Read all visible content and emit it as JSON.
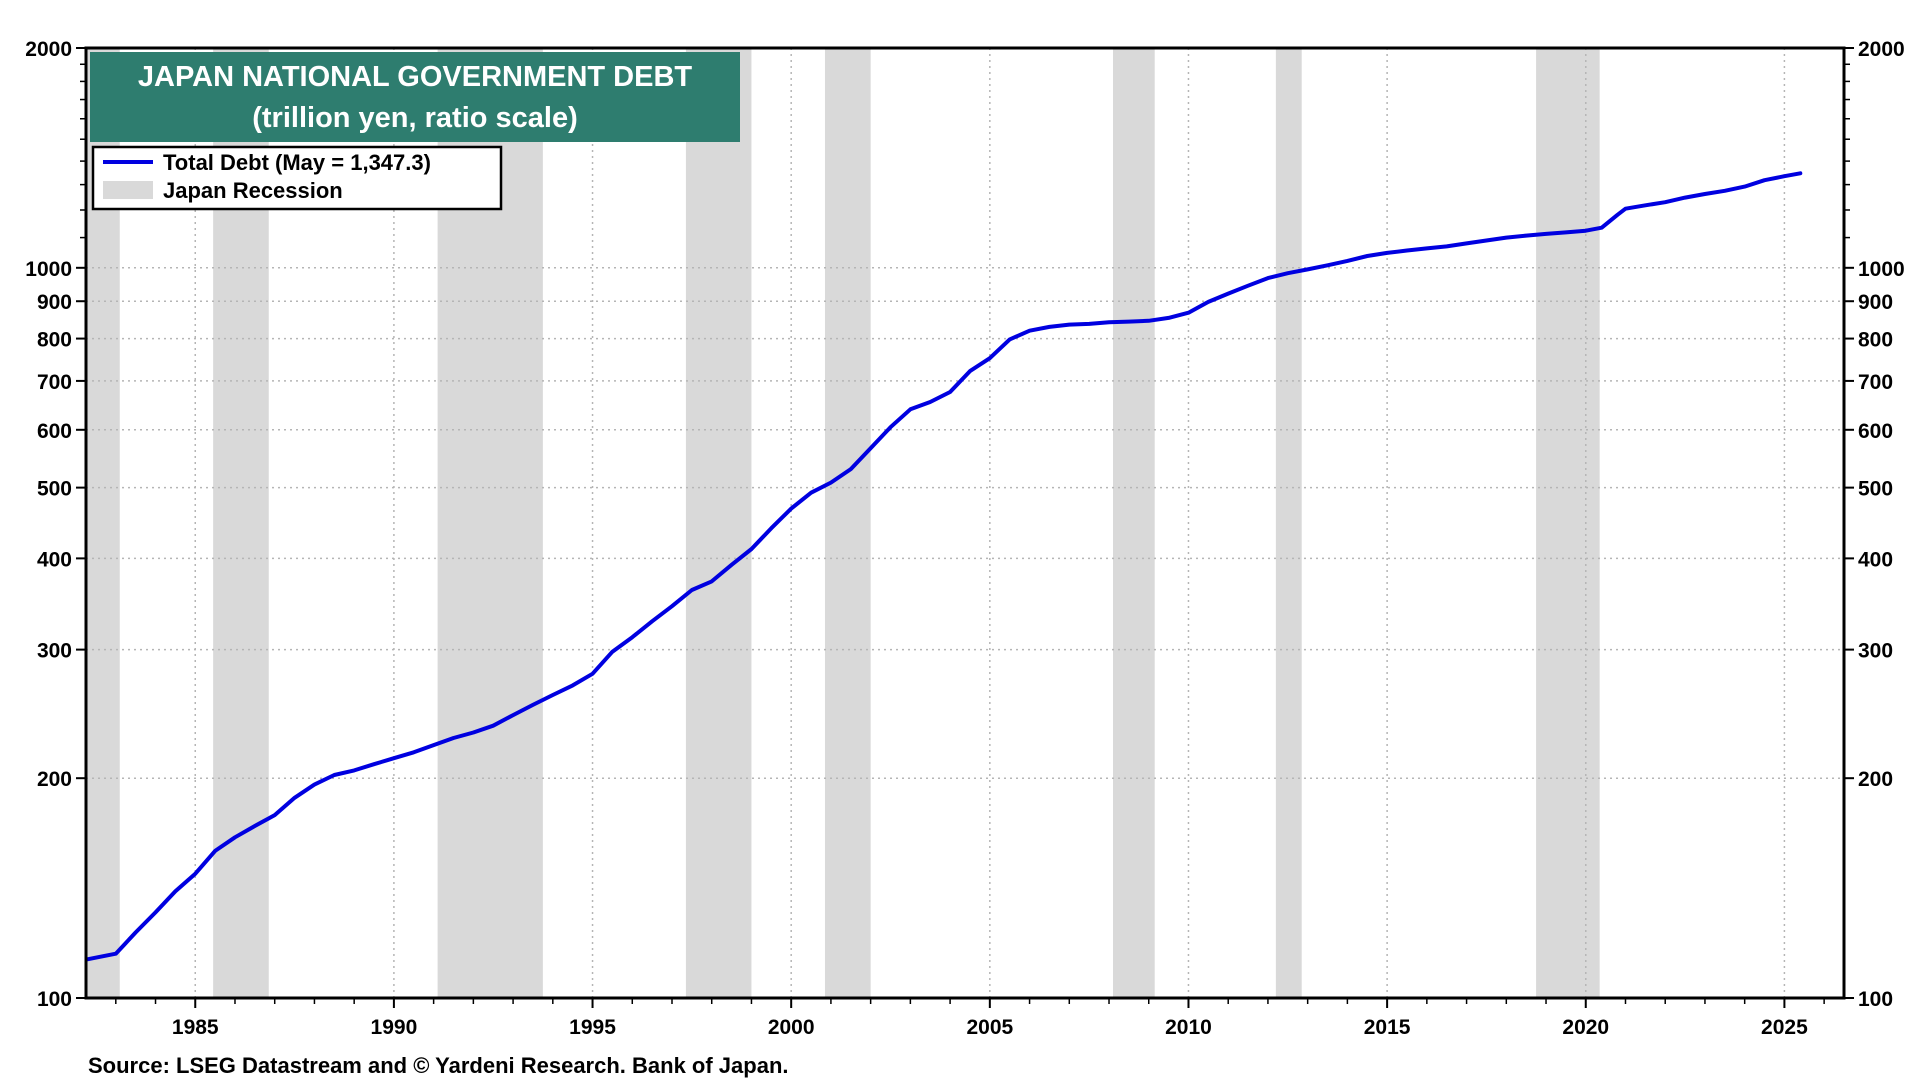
{
  "chart_data": {
    "type": "line",
    "title": "JAPAN NATIONAL GOVERNMENT DEBT",
    "subtitle": "(trillion yen, ratio scale)",
    "source": "Source: LSEG Datastream and © Yardeni Research. Bank of Japan.",
    "y_scale": "log",
    "ylim": [
      100,
      2000
    ],
    "xlim": [
      1982.25,
      2026.5
    ],
    "y_ticks": [
      100,
      200,
      300,
      400,
      500,
      600,
      700,
      800,
      900,
      1000,
      2000
    ],
    "x_ticks": [
      1985,
      1990,
      1995,
      2000,
      2005,
      2010,
      2015,
      2020,
      2025
    ],
    "grid": true,
    "legend_position": "top-left",
    "legend": [
      {
        "label": "Total Debt (May = 1,347.3)",
        "type": "line",
        "color": "#0000e0"
      },
      {
        "label": "Japan Recession",
        "type": "band",
        "color": "#d9d9d9"
      }
    ],
    "recessions": [
      [
        1982.25,
        1983.1
      ],
      [
        1985.45,
        1986.85
      ],
      [
        1991.1,
        1993.75
      ],
      [
        1997.35,
        1999.0
      ],
      [
        2000.85,
        2002.0
      ],
      [
        2008.1,
        2009.15
      ],
      [
        2012.2,
        2012.85
      ],
      [
        2018.75,
        2020.35
      ]
    ],
    "series": [
      {
        "name": "Total Debt",
        "color": "#0000e0",
        "x": [
          1982.3,
          1983.0,
          1983.5,
          1984.0,
          1984.5,
          1985.0,
          1985.5,
          1986.0,
          1986.5,
          1987.0,
          1987.5,
          1988.0,
          1988.5,
          1989.0,
          1989.5,
          1990.0,
          1990.5,
          1991.0,
          1991.5,
          1992.0,
          1992.5,
          1993.0,
          1993.5,
          1994.0,
          1994.5,
          1995.0,
          1995.5,
          1996.0,
          1996.5,
          1997.0,
          1997.5,
          1998.0,
          1998.5,
          1999.0,
          1999.5,
          2000.0,
          2000.5,
          2001.0,
          2001.5,
          2002.0,
          2002.5,
          2003.0,
          2003.5,
          2004.0,
          2004.5,
          2005.0,
          2005.5,
          2006.0,
          2006.5,
          2007.0,
          2007.5,
          2008.0,
          2008.5,
          2009.0,
          2009.5,
          2010.0,
          2010.5,
          2011.0,
          2011.5,
          2012.0,
          2012.5,
          2013.0,
          2013.5,
          2014.0,
          2014.5,
          2015.0,
          2015.5,
          2016.0,
          2016.5,
          2017.0,
          2017.5,
          2018.0,
          2018.5,
          2019.0,
          2019.5,
          2020.0,
          2020.4,
          2020.8,
          2021.0,
          2021.5,
          2022.0,
          2022.5,
          2023.0,
          2023.5,
          2024.0,
          2024.5,
          2025.0,
          2025.4
        ],
        "values": [
          113,
          115,
          123,
          131,
          140,
          148,
          159,
          166,
          172,
          178,
          188,
          196,
          202,
          205,
          209,
          213,
          217,
          222,
          227,
          231,
          236,
          244,
          252,
          260,
          268,
          278,
          298,
          312,
          328,
          344,
          362,
          372,
          392,
          412,
          440,
          468,
          492,
          508,
          530,
          566,
          605,
          640,
          655,
          676,
          722,
          752,
          798,
          820,
          830,
          836,
          838,
          842,
          844,
          846,
          854,
          868,
          898,
          922,
          945,
          968,
          983,
          995,
          1008,
          1022,
          1038,
          1048,
          1056,
          1063,
          1070,
          1080,
          1090,
          1100,
          1107,
          1113,
          1118,
          1124,
          1135,
          1182,
          1205,
          1218,
          1230,
          1248,
          1262,
          1275,
          1292,
          1318,
          1335,
          1347.3
        ]
      }
    ]
  }
}
